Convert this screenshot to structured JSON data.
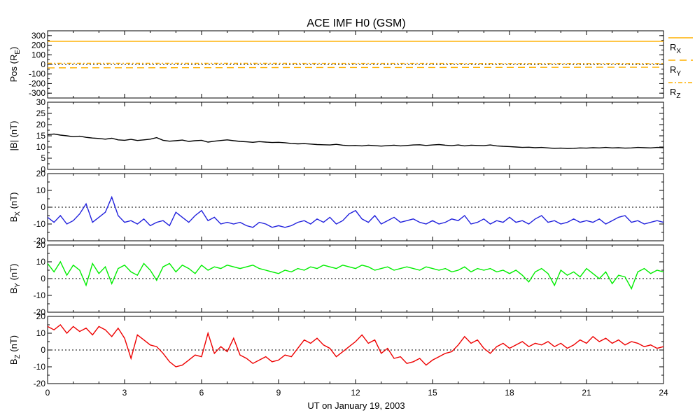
{
  "chart_data": {
    "type": "line",
    "title": "ACE IMF H0 (GSM)",
    "xlabel": "UT on January 19, 2003",
    "xlim": [
      0,
      24
    ],
    "x_ticks": [
      "0",
      "3",
      "6",
      "9",
      "12",
      "15",
      "18",
      "21",
      "24"
    ],
    "panels": [
      {
        "name": "pos",
        "ylabel": "Pos (RE)",
        "ylabel_parts": [
          "Pos (R",
          "E",
          ")"
        ],
        "ylim": [
          -350,
          350
        ],
        "y_ticks": [
          -300,
          -200,
          -100,
          0,
          100,
          200,
          300
        ],
        "y_tick_labels": [
          "-300",
          "-200",
          "-100",
          "0",
          "100",
          "200",
          "300"
        ],
        "zero_line": true,
        "series": [
          {
            "name": "RX",
            "name_parts": [
              "R",
              "X"
            ],
            "color": "#ffb000",
            "dash": "solid",
            "x": [
              0,
              24
            ],
            "y": [
              240,
              240
            ]
          },
          {
            "name": "RY",
            "name_parts": [
              "R",
              "Y"
            ],
            "color": "#ffb000",
            "dash": "long",
            "x": [
              0,
              3,
              6,
              9,
              12,
              15,
              18,
              21,
              24
            ],
            "y": [
              -36,
              -35,
              -34,
              -33,
              -32,
              -32,
              -31,
              -30,
              -30
            ]
          },
          {
            "name": "RZ",
            "name_parts": [
              "R",
              "Z"
            ],
            "color": "#ffb000",
            "dash": "dashdot",
            "x": [
              0,
              3,
              6,
              9,
              12,
              15,
              18,
              21,
              24
            ],
            "y": [
              12,
              12,
              11,
              11,
              10,
              10,
              9,
              9,
              9
            ]
          }
        ]
      },
      {
        "name": "bt",
        "ylabel": "|B| (nT)",
        "ylabel_parts": [
          "|B| (nT)",
          "",
          ""
        ],
        "ylim": [
          0,
          30
        ],
        "y_ticks": [
          0,
          5,
          10,
          15,
          20,
          25,
          30
        ],
        "y_tick_labels": [
          "0",
          "5",
          "10",
          "15",
          "20",
          "25",
          "30"
        ],
        "zero_line": false,
        "series": [
          {
            "name": "|B|",
            "color": "#000000",
            "dash": "solid",
            "x": [
              0,
              0.25,
              0.5,
              0.75,
              1,
              1.25,
              1.5,
              1.75,
              2,
              2.25,
              2.5,
              2.75,
              3,
              3.25,
              3.5,
              3.75,
              4,
              4.25,
              4.5,
              4.75,
              5,
              5.25,
              5.5,
              5.75,
              6,
              6.25,
              6.5,
              6.75,
              7,
              7.25,
              7.5,
              7.75,
              8,
              8.25,
              8.5,
              8.75,
              9,
              9.25,
              9.5,
              9.75,
              10,
              10.25,
              10.5,
              10.75,
              11,
              11.25,
              11.5,
              11.75,
              12,
              12.25,
              12.5,
              12.75,
              13,
              13.25,
              13.5,
              13.75,
              14,
              14.25,
              14.5,
              14.75,
              15,
              15.25,
              15.5,
              15.75,
              16,
              16.25,
              16.5,
              16.75,
              17,
              17.25,
              17.5,
              17.75,
              18,
              18.25,
              18.5,
              18.75,
              19,
              19.25,
              19.5,
              19.75,
              20,
              20.25,
              20.5,
              20.75,
              21,
              21.25,
              21.5,
              21.75,
              22,
              22.25,
              22.5,
              22.75,
              23,
              23.25,
              23.5,
              23.75,
              24
            ],
            "y": [
              15.5,
              15.8,
              15.3,
              15.0,
              14.6,
              14.8,
              14.3,
              14.0,
              13.8,
              13.5,
              13.9,
              13.2,
              13.0,
              13.4,
              12.9,
              13.2,
              13.5,
              14.2,
              13.0,
              12.6,
              12.8,
              13.1,
              12.5,
              12.8,
              13.0,
              12.2,
              12.6,
              12.9,
              13.2,
              12.8,
              12.5,
              12.3,
              12.1,
              12.4,
              12.2,
              12.0,
              12.1,
              11.9,
              11.6,
              11.4,
              11.5,
              11.3,
              11.1,
              11.0,
              10.9,
              11.2,
              10.8,
              10.6,
              10.7,
              10.5,
              10.8,
              10.6,
              10.4,
              10.6,
              10.8,
              10.5,
              10.7,
              10.9,
              11.0,
              10.7,
              10.9,
              11.1,
              10.8,
              10.6,
              10.9,
              10.5,
              10.8,
              10.7,
              10.6,
              10.9,
              10.5,
              10.3,
              10.2,
              10.0,
              9.8,
              9.9,
              9.7,
              9.8,
              9.6,
              9.4,
              9.5,
              9.3,
              9.4,
              9.6,
              9.5,
              9.7,
              9.6,
              9.8,
              9.6,
              9.7,
              9.5,
              9.6,
              9.8,
              9.7,
              9.6,
              9.8,
              9.7
            ]
          }
        ]
      },
      {
        "name": "bx",
        "ylabel": "BX (nT)",
        "ylabel_parts": [
          "B",
          "X",
          " (nT)"
        ],
        "ylim": [
          -20,
          20
        ],
        "y_ticks": [
          -20,
          -10,
          0,
          10,
          20
        ],
        "y_tick_labels": [
          "-20",
          "-10",
          "0",
          "10",
          "20"
        ],
        "zero_line": true,
        "series": [
          {
            "name": "BX",
            "color": "#2222dd",
            "dash": "solid",
            "x": [
              0,
              0.25,
              0.5,
              0.75,
              1,
              1.25,
              1.5,
              1.75,
              2,
              2.25,
              2.5,
              2.75,
              3,
              3.25,
              3.5,
              3.75,
              4,
              4.25,
              4.5,
              4.75,
              5,
              5.25,
              5.5,
              5.75,
              6,
              6.25,
              6.5,
              6.75,
              7,
              7.25,
              7.5,
              7.75,
              8,
              8.25,
              8.5,
              8.75,
              9,
              9.25,
              9.5,
              9.75,
              10,
              10.25,
              10.5,
              10.75,
              11,
              11.25,
              11.5,
              11.75,
              12,
              12.25,
              12.5,
              12.75,
              13,
              13.25,
              13.5,
              13.75,
              14,
              14.25,
              14.5,
              14.75,
              15,
              15.25,
              15.5,
              15.75,
              16,
              16.25,
              16.5,
              16.75,
              17,
              17.25,
              17.5,
              17.75,
              18,
              18.25,
              18.5,
              18.75,
              19,
              19.25,
              19.5,
              19.75,
              20,
              20.25,
              20.5,
              20.75,
              21,
              21.25,
              21.5,
              21.75,
              22,
              22.25,
              22.5,
              22.75,
              23,
              23.25,
              23.5,
              23.75,
              24
            ],
            "y": [
              -6,
              -9,
              -5,
              -10,
              -8,
              -4,
              2,
              -9,
              -6,
              -3,
              6,
              -5,
              -9,
              -8,
              -10,
              -7,
              -11,
              -9,
              -8,
              -11,
              -3,
              -6,
              -9,
              -5,
              -2,
              -8,
              -6,
              -10,
              -9,
              -10,
              -9,
              -11,
              -12,
              -9,
              -10,
              -12,
              -11,
              -12,
              -11,
              -9,
              -8,
              -10,
              -7,
              -9,
              -6,
              -10,
              -8,
              -4,
              -2,
              -7,
              -9,
              -5,
              -10,
              -8,
              -6,
              -9,
              -8,
              -7,
              -9,
              -10,
              -8,
              -10,
              -9,
              -7,
              -8,
              -5,
              -10,
              -9,
              -7,
              -10,
              -8,
              -9,
              -6,
              -9,
              -8,
              -10,
              -7,
              -5,
              -9,
              -8,
              -10,
              -9,
              -7,
              -9,
              -8,
              -9,
              -7,
              -10,
              -8,
              -6,
              -5,
              -9,
              -8,
              -10,
              -9,
              -8,
              -9
            ]
          }
        ]
      },
      {
        "name": "by",
        "ylabel": "BY (nT)",
        "ylabel_parts": [
          "B",
          "Y",
          " (nT)"
        ],
        "ylim": [
          -20,
          20
        ],
        "y_ticks": [
          -20,
          -10,
          0,
          10,
          20
        ],
        "y_tick_labels": [
          "-20",
          "-10",
          "0",
          "10",
          "20"
        ],
        "zero_line": true,
        "series": [
          {
            "name": "BY",
            "color": "#00ee00",
            "dash": "solid",
            "x": [
              0,
              0.25,
              0.5,
              0.75,
              1,
              1.25,
              1.5,
              1.75,
              2,
              2.25,
              2.5,
              2.75,
              3,
              3.25,
              3.5,
              3.75,
              4,
              4.25,
              4.5,
              4.75,
              5,
              5.25,
              5.5,
              5.75,
              6,
              6.25,
              6.5,
              6.75,
              7,
              7.25,
              7.5,
              7.75,
              8,
              8.25,
              8.5,
              8.75,
              9,
              9.25,
              9.5,
              9.75,
              10,
              10.25,
              10.5,
              10.75,
              11,
              11.25,
              11.5,
              11.75,
              12,
              12.25,
              12.5,
              12.75,
              13,
              13.25,
              13.5,
              13.75,
              14,
              14.25,
              14.5,
              14.75,
              15,
              15.25,
              15.5,
              15.75,
              16,
              16.25,
              16.5,
              16.75,
              17,
              17.25,
              17.5,
              17.75,
              18,
              18.25,
              18.5,
              18.75,
              19,
              19.25,
              19.5,
              19.75,
              20,
              20.25,
              20.5,
              20.75,
              21,
              21.25,
              21.5,
              21.75,
              22,
              22.25,
              22.5,
              22.75,
              23,
              23.25,
              23.5,
              23.75,
              24
            ],
            "y": [
              9,
              4,
              10,
              2,
              8,
              5,
              -4,
              9,
              3,
              7,
              -3,
              6,
              8,
              4,
              2,
              9,
              5,
              -1,
              7,
              9,
              4,
              8,
              6,
              3,
              8,
              5,
              7,
              6,
              8,
              7,
              6,
              7,
              8,
              6,
              5,
              4,
              3,
              5,
              4,
              6,
              5,
              7,
              6,
              8,
              7,
              6,
              8,
              7,
              6,
              8,
              7,
              5,
              6,
              7,
              5,
              6,
              7,
              6,
              5,
              7,
              6,
              5,
              6,
              4,
              5,
              7,
              4,
              6,
              5,
              6,
              4,
              5,
              3,
              5,
              2,
              -2,
              4,
              6,
              3,
              -4,
              5,
              2,
              4,
              1,
              6,
              3,
              0,
              4,
              -3,
              2,
              1,
              -6,
              4,
              6,
              3,
              5,
              4
            ]
          }
        ]
      },
      {
        "name": "bz",
        "ylabel": "BZ (nT)",
        "ylabel_parts": [
          "B",
          "Z",
          " (nT)"
        ],
        "ylim": [
          -20,
          20
        ],
        "y_ticks": [
          -20,
          -10,
          0,
          10,
          20
        ],
        "y_tick_labels": [
          "-20",
          "-10",
          "0",
          "10",
          "20"
        ],
        "zero_line": true,
        "series": [
          {
            "name": "BZ",
            "color": "#ee0000",
            "dash": "solid",
            "x": [
              0,
              0.25,
              0.5,
              0.75,
              1,
              1.25,
              1.5,
              1.75,
              2,
              2.25,
              2.5,
              2.75,
              3,
              3.25,
              3.5,
              3.75,
              4,
              4.25,
              4.5,
              4.75,
              5,
              5.25,
              5.5,
              5.75,
              6,
              6.25,
              6.5,
              6.75,
              7,
              7.25,
              7.5,
              7.75,
              8,
              8.25,
              8.5,
              8.75,
              9,
              9.25,
              9.5,
              9.75,
              10,
              10.25,
              10.5,
              10.75,
              11,
              11.25,
              11.5,
              11.75,
              12,
              12.25,
              12.5,
              12.75,
              13,
              13.25,
              13.5,
              13.75,
              14,
              14.25,
              14.5,
              14.75,
              15,
              15.25,
              15.5,
              15.75,
              16,
              16.25,
              16.5,
              16.75,
              17,
              17.25,
              17.5,
              17.75,
              18,
              18.25,
              18.5,
              18.75,
              19,
              19.25,
              19.5,
              19.75,
              20,
              20.25,
              20.5,
              20.75,
              21,
              21.25,
              21.5,
              21.75,
              22,
              22.25,
              22.5,
              22.75,
              23,
              23.25,
              23.5,
              23.75,
              24
            ],
            "y": [
              14,
              12,
              15,
              10,
              14,
              11,
              13,
              9,
              14,
              12,
              8,
              13,
              7,
              -5,
              9,
              6,
              3,
              2,
              -2,
              -7,
              -10,
              -9,
              -6,
              -3,
              -4,
              10,
              -2,
              2,
              -1,
              7,
              -3,
              -5,
              -8,
              -6,
              -4,
              -7,
              -6,
              -3,
              -4,
              1,
              6,
              4,
              7,
              3,
              1,
              -4,
              -1,
              2,
              5,
              9,
              4,
              6,
              -2,
              1,
              -5,
              -4,
              -8,
              -7,
              -5,
              -9,
              -6,
              -4,
              -2,
              -1,
              3,
              8,
              4,
              6,
              1,
              -2,
              2,
              4,
              1,
              3,
              5,
              2,
              4,
              3,
              5,
              2,
              4,
              1,
              3,
              6,
              4,
              8,
              5,
              7,
              4,
              6,
              3,
              5,
              4,
              2,
              3,
              1,
              2
            ]
          }
        ]
      }
    ]
  }
}
